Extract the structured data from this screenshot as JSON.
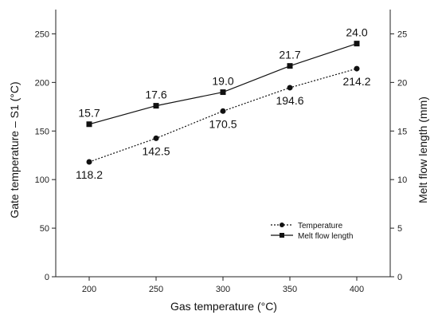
{
  "chart_data": {
    "type": "line",
    "xlabel": "Gas temperature (°C)",
    "ylabel_left": "Gate temperature – S1 (°C)",
    "ylabel_right": "Melt flow length (mm)",
    "x": [
      200,
      250,
      300,
      350,
      400
    ],
    "xlim": [
      175,
      425
    ],
    "x_ticks": [
      200,
      250,
      300,
      350,
      400
    ],
    "ylim_left": [
      0,
      275
    ],
    "y_ticks_left": [
      0,
      50,
      100,
      150,
      200,
      250
    ],
    "ylim_right": [
      0,
      27.5
    ],
    "y_ticks_right": [
      0,
      5,
      10,
      15,
      20,
      25
    ],
    "grid": false,
    "legend_position": "bottom-right",
    "series": [
      {
        "name": "Temperature",
        "axis": "left",
        "marker": "circle",
        "line_style": "dotted",
        "values": [
          118.2,
          142.5,
          170.5,
          194.6,
          214.2
        ],
        "labels": [
          "118.2",
          "142.5",
          "170.5",
          "194.6",
          "214.2"
        ],
        "label_position": "below"
      },
      {
        "name": "Melt flow length",
        "axis": "right",
        "marker": "square",
        "line_style": "solid",
        "values": [
          15.7,
          17.6,
          19.0,
          21.7,
          24.0
        ],
        "labels": [
          "15.7",
          "17.6",
          "19.0",
          "21.7",
          "24.0"
        ],
        "label_position": "above"
      }
    ],
    "colors": {
      "line": "#111111",
      "axis": "#222222"
    }
  }
}
